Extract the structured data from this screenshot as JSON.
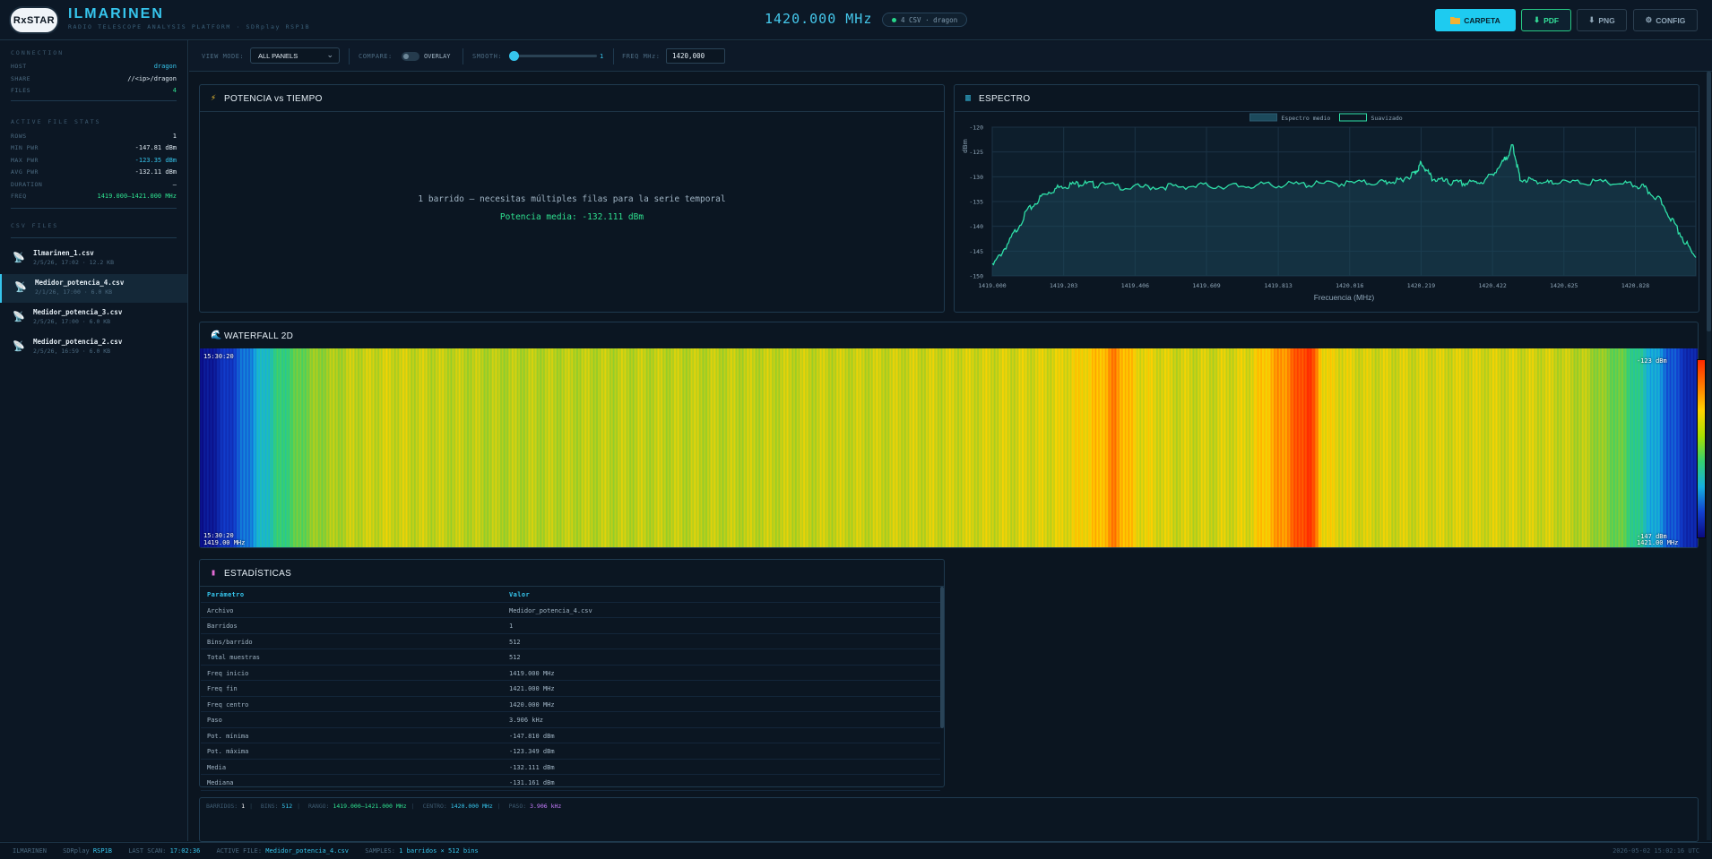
{
  "header": {
    "logo_text": "RxSTAR",
    "title": "ILMARINEN",
    "subtitle": "RADIO TELESCOPE ANALYSIS PLATFORM · SDRplay RSP1B",
    "center_freq": "1420.000 MHz",
    "connection_pill": "4 CSV · dragon",
    "buttons": {
      "carpeta": "CARPETA",
      "pdf": "PDF",
      "png": "PNG",
      "config": "CONFIG"
    },
    "icons": {
      "carpeta": "folder-icon",
      "pdf": "download-icon",
      "png": "download-icon",
      "config": "gear-icon"
    }
  },
  "sidebar": {
    "connection": {
      "title": "CONNECTION",
      "host_label": "HOST",
      "host_value": "dragon",
      "share_label": "SHARE",
      "share_value": "//<ip>/dragon",
      "files_label": "FILES",
      "files_value": "4"
    },
    "active_stats": {
      "title": "ACTIVE FILE STATS",
      "rows": [
        {
          "label": "ROWS",
          "value": "1"
        },
        {
          "label": "MIN PWR",
          "value": "-147.81 dBm"
        },
        {
          "label": "MAX PWR",
          "value": "-123.35 dBm"
        },
        {
          "label": "AVG PWR",
          "value": "-132.11 dBm"
        },
        {
          "label": "DURATION",
          "value": "—"
        },
        {
          "label": "FREQ",
          "value": "1419.000–1421.000 MHz"
        }
      ]
    },
    "csv_files": {
      "title": "CSV FILES",
      "icon": "satellite-dish-icon",
      "items": [
        {
          "name": "Ilmarinen_1.csv",
          "meta": "2/5/26, 17:02 · 12.2 KB",
          "active": false
        },
        {
          "name": "Medidor_potencia_4.csv",
          "meta": "2/1/26, 17:00 · 6.0 KB",
          "active": true
        },
        {
          "name": "Medidor_potencia_3.csv",
          "meta": "2/5/26, 17:00 · 6.0 KB",
          "active": false
        },
        {
          "name": "Medidor_potencia_2.csv",
          "meta": "2/5/26, 16:59 · 6.0 KB",
          "active": false
        }
      ]
    }
  },
  "toolbar": {
    "view_mode_label": "VIEW MODE:",
    "view_mode_value": "ALL PANELS",
    "compare_label": "COMPARE:",
    "overlay_label": "OVERLAY",
    "overlay_on": false,
    "smooth_label": "SMOOTH:",
    "smooth_value": "1",
    "freq_label": "FREQ MHz:",
    "freq_value": "1420,000"
  },
  "panels": {
    "power": {
      "title": "POTENCIA vs TIEMPO",
      "icon": "lightning-icon",
      "message": "1 barrido — necesitas múltiples filas para la serie temporal",
      "average": "Potencia media: -132.111 dBm"
    },
    "spectrum": {
      "title": "ESPECTRO",
      "icon": "chart-icon"
    },
    "waterfall": {
      "title": "WATERFALL 2D",
      "icon": "wave-icon",
      "time_top": "15:30:20",
      "time_bottom": "15:30:20",
      "freq_left": "1419.00 MHz",
      "freq_right": "1421.00 MHz",
      "scale_top": "-123 dBm",
      "scale_bottom": "-147 dBm"
    },
    "stats": {
      "title": "ESTADÍSTICAS",
      "icon": "bar-chart-icon",
      "headers": [
        "Parámetro",
        "Valor"
      ],
      "rows": [
        [
          "Archivo",
          "Medidor_potencia_4.csv"
        ],
        [
          "Barridos",
          "1"
        ],
        [
          "Bins/barrido",
          "512"
        ],
        [
          "Total muestras",
          "512"
        ],
        [
          "Freq inicio",
          "1419.000 MHz"
        ],
        [
          "Freq fin",
          "1421.000 MHz"
        ],
        [
          "Freq centro",
          "1420.000 MHz"
        ],
        [
          "Paso",
          "3.906 kHz"
        ],
        [
          "Pot. mínima",
          "-147.810 dBm"
        ],
        [
          "Pot. máxima",
          "-123.349 dBm"
        ],
        [
          "Media",
          "-132.111 dBm"
        ],
        [
          "Mediana",
          "-131.161 dBm"
        ]
      ]
    }
  },
  "chart_data": {
    "type": "line",
    "xlabel": "Frecuencia (MHz)",
    "ylabel": "dBm",
    "xlim": [
      1419.0,
      1421.0
    ],
    "ylim": [
      -150,
      -120
    ],
    "grid": true,
    "legend_position": "top-center",
    "x_ticks": [
      "1419.000",
      "1419.203",
      "1419.406",
      "1419.609",
      "1419.813",
      "1420.016",
      "1420.219",
      "1420.422",
      "1420.625",
      "1420.828"
    ],
    "y_ticks": [
      "-120",
      "-125",
      "-130",
      "-135",
      "-140",
      "-145",
      "-150"
    ],
    "series": [
      {
        "name": "Espectro medio",
        "color": "#1c4a5c",
        "x": [
          1419.0,
          1419.05,
          1419.1,
          1419.15,
          1419.2,
          1419.25,
          1419.3,
          1419.4,
          1419.5,
          1419.6,
          1419.7,
          1419.8,
          1419.9,
          1420.0,
          1420.1,
          1420.15,
          1420.2,
          1420.22,
          1420.25,
          1420.3,
          1420.35,
          1420.4,
          1420.45,
          1420.48,
          1420.5,
          1420.55,
          1420.6,
          1420.7,
          1420.8,
          1420.85,
          1420.9,
          1420.95,
          1421.0
        ],
        "values": [
          -147.8,
          -142.5,
          -136.6,
          -133.0,
          -131.5,
          -131.0,
          -131.3,
          -131.8,
          -131.6,
          -131.5,
          -131.5,
          -131.3,
          -131.2,
          -131.0,
          -130.8,
          -130.5,
          -129.0,
          -126.9,
          -130.0,
          -130.9,
          -131.0,
          -130.5,
          -127.0,
          -123.4,
          -130.0,
          -130.8,
          -130.9,
          -130.8,
          -131.0,
          -131.8,
          -134.5,
          -140.5,
          -146.3
        ]
      },
      {
        "name": "Suavizado",
        "color": "#2fe0a8",
        "x": [
          1419.0,
          1419.05,
          1419.1,
          1419.15,
          1419.2,
          1419.25,
          1419.3,
          1419.4,
          1419.5,
          1419.6,
          1419.7,
          1419.8,
          1419.9,
          1420.0,
          1420.1,
          1420.15,
          1420.2,
          1420.22,
          1420.25,
          1420.3,
          1420.35,
          1420.4,
          1420.45,
          1420.48,
          1420.5,
          1420.55,
          1420.6,
          1420.7,
          1420.8,
          1420.85,
          1420.9,
          1420.95,
          1421.0
        ],
        "values": [
          -147.8,
          -142.5,
          -136.6,
          -133.0,
          -131.5,
          -131.0,
          -131.3,
          -131.8,
          -131.6,
          -131.5,
          -131.5,
          -131.3,
          -131.2,
          -131.0,
          -130.8,
          -130.5,
          -129.0,
          -126.9,
          -130.0,
          -130.9,
          -131.0,
          -130.5,
          -127.0,
          -123.4,
          -130.0,
          -130.8,
          -130.9,
          -130.8,
          -131.0,
          -131.8,
          -134.5,
          -140.5,
          -146.3
        ]
      }
    ]
  },
  "infobar": {
    "barridos_label": "BARRIDOS:",
    "barridos_value": "1",
    "bins_label": "BINS:",
    "bins_value": "512",
    "rango_label": "RANGO:",
    "rango_value": "1419.000–1421.000 MHz",
    "centro_label": "CENTRO:",
    "centro_value": "1420.000 MHz",
    "paso_label": "PASO:",
    "paso_value": "3.906 kHz"
  },
  "statusbar": {
    "app": "ILMARINEN",
    "device_label": "SDRplay",
    "device_value": "RSP1B",
    "last_scan_label": "LAST SCAN:",
    "last_scan_value": "17:02:36",
    "active_file_label": "ACTIVE FILE:",
    "active_file_value": "Medidor_potencia_4.csv",
    "samples_label": "SAMPLES:",
    "samples_value": "1 barridos × 512 bins",
    "timestamp": "2026-05-02 15:02:16 UTC"
  },
  "colors": {
    "accent": "#36c5ec",
    "success": "#2fe08f",
    "background": "#0b1520"
  }
}
